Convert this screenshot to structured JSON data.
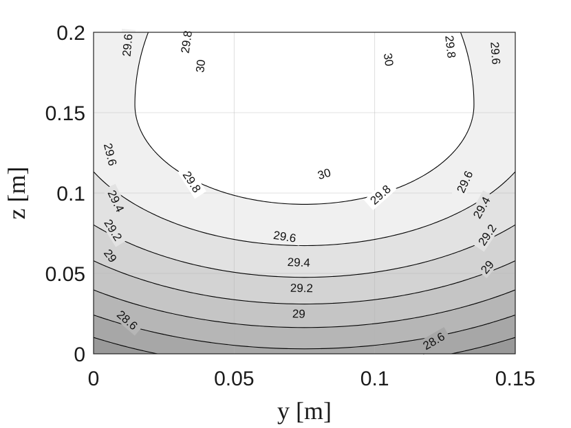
{
  "chart_data": {
    "type": "contour",
    "xlabel": "y [m]",
    "ylabel": "z [m]",
    "xlim": [
      0,
      0.15
    ],
    "ylim": [
      0,
      0.2
    ],
    "xticks": [
      0,
      0.05,
      0.1,
      0.15
    ],
    "xtick_labels": [
      "0",
      "0.05",
      "0.1",
      "0.15"
    ],
    "yticks": [
      0,
      0.05,
      0.1,
      0.15,
      0.2
    ],
    "ytick_labels": [
      "0",
      "0.05",
      "0.1",
      "0.15",
      "0.2"
    ],
    "grid": true,
    "colormap": "gray",
    "levels": [
      28.6,
      28.8,
      29,
      29.2,
      29.4,
      29.6,
      29.8,
      30
    ],
    "field": {
      "kind": "elliptic_peak",
      "center": [
        0.075,
        0.155
      ],
      "peak_value": 30.2,
      "coef_y": 55,
      "coef_z_above": 15,
      "coef_z_below": 52
    },
    "contour_labels": [
      {
        "text": "28.6",
        "y": 0.012,
        "z": 0.021
      },
      {
        "text": "28.6",
        "y": 0.121,
        "z": 0.008
      },
      {
        "text": "29",
        "y": 0.006,
        "z": 0.061
      },
      {
        "text": "29",
        "y": 0.073,
        "z": 0.025
      },
      {
        "text": "29",
        "y": 0.14,
        "z": 0.054
      },
      {
        "text": "29.2",
        "y": 0.007,
        "z": 0.077
      },
      {
        "text": "29.2",
        "y": 0.074,
        "z": 0.041
      },
      {
        "text": "29.2",
        "y": 0.14,
        "z": 0.074
      },
      {
        "text": "29.4",
        "y": 0.008,
        "z": 0.095
      },
      {
        "text": "29.4",
        "y": 0.073,
        "z": 0.057
      },
      {
        "text": "29.4",
        "y": 0.138,
        "z": 0.091
      },
      {
        "text": "29.6",
        "y": 0.006,
        "z": 0.124
      },
      {
        "text": "29.6",
        "y": 0.068,
        "z": 0.073
      },
      {
        "text": "29.6",
        "y": 0.132,
        "z": 0.107
      },
      {
        "text": "29.6",
        "y": 0.012,
        "z": 0.192
      },
      {
        "text": "29.6",
        "y": 0.143,
        "z": 0.187
      },
      {
        "text": "29.8",
        "y": 0.035,
        "z": 0.107
      },
      {
        "text": "29.8",
        "y": 0.102,
        "z": 0.099
      },
      {
        "text": "29.8",
        "y": 0.033,
        "z": 0.194
      },
      {
        "text": "29.8",
        "y": 0.127,
        "z": 0.191
      },
      {
        "text": "30",
        "y": 0.038,
        "z": 0.179
      },
      {
        "text": "30",
        "y": 0.105,
        "z": 0.183
      },
      {
        "text": "30",
        "y": 0.082,
        "z": 0.112
      }
    ]
  }
}
